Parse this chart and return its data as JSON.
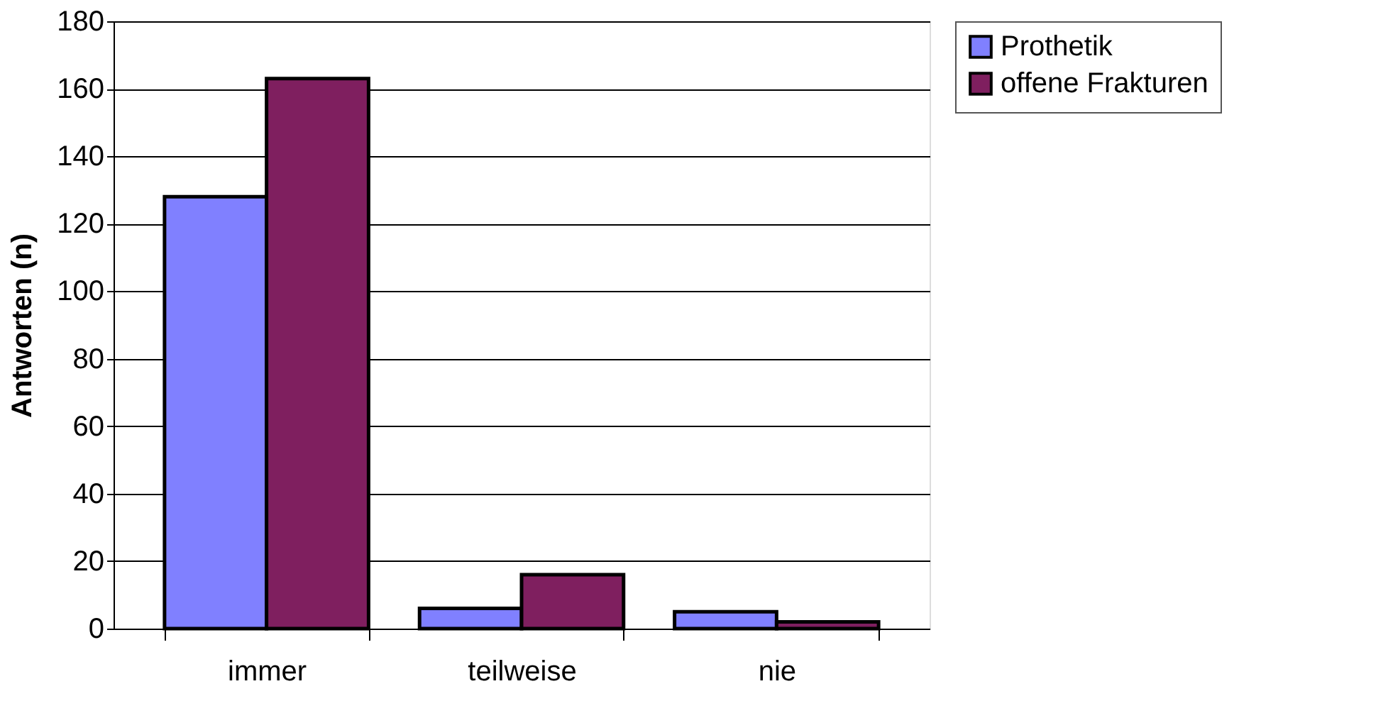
{
  "chart_data": {
    "type": "bar",
    "ylabel": "Antworten (n)",
    "categories": [
      "immer",
      "teilweise",
      "nie"
    ],
    "series": [
      {
        "name": "Prothetik",
        "color": "#8080ff",
        "values": [
          128,
          6,
          5
        ]
      },
      {
        "name": "offene Frakturen",
        "color": "#7f1f5f",
        "values": [
          163,
          16,
          2
        ]
      }
    ],
    "ylim": [
      0,
      180
    ],
    "yticks": [
      0,
      20,
      40,
      60,
      80,
      100,
      120,
      140,
      160,
      180
    ],
    "grid": "y",
    "legend": "right"
  }
}
